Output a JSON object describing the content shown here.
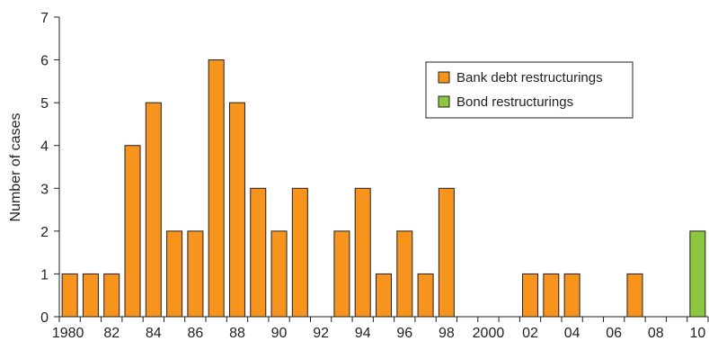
{
  "chart_data": {
    "type": "bar",
    "title": "",
    "xlabel": "",
    "ylabel": "Number of cases",
    "ylim": [
      0,
      7
    ],
    "yticks": [
      0,
      1,
      2,
      3,
      4,
      5,
      6,
      7
    ],
    "grid": false,
    "legend_position": "top-right",
    "categories": [
      1980,
      1981,
      1982,
      1983,
      1984,
      1985,
      1986,
      1987,
      1988,
      1989,
      1990,
      1991,
      1992,
      1993,
      1994,
      1995,
      1996,
      1997,
      1998,
      1999,
      2000,
      2001,
      2002,
      2003,
      2004,
      2005,
      2006,
      2007,
      2008,
      2009,
      2010
    ],
    "x_tick_labels": [
      "1980",
      "82",
      "84",
      "86",
      "88",
      "90",
      "92",
      "94",
      "96",
      "98",
      "2000",
      "02",
      "04",
      "06",
      "08",
      "10"
    ],
    "series": [
      {
        "name": "Bank debt restructurings",
        "color": "#f7941d",
        "values": [
          1,
          1,
          1,
          4,
          5,
          2,
          2,
          6,
          5,
          3,
          2,
          3,
          0,
          2,
          3,
          1,
          2,
          1,
          3,
          0,
          0,
          0,
          1,
          1,
          1,
          0,
          0,
          1,
          0,
          0,
          0
        ]
      },
      {
        "name": "Bond restructurings",
        "color": "#8dc63f",
        "values": [
          0,
          0,
          0,
          0,
          0,
          0,
          0,
          0,
          0,
          0,
          0,
          0,
          0,
          0,
          0,
          0,
          0,
          0,
          0,
          0,
          0,
          0,
          0,
          0,
          0,
          0,
          0,
          0,
          0,
          0,
          2
        ]
      }
    ],
    "bar_edge_color": "#231f20"
  }
}
